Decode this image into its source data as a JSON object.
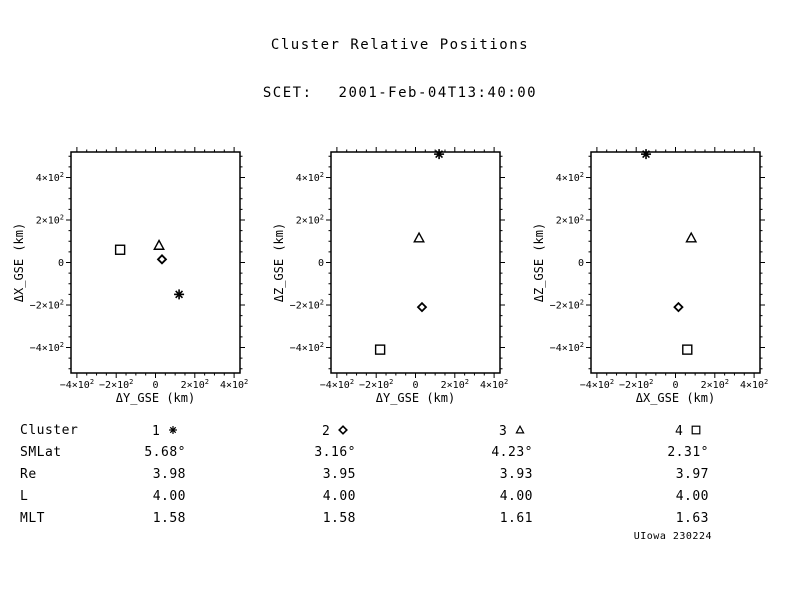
{
  "chart_data": {
    "type": "scatter",
    "title": "Cluster Relative Positions",
    "subtitle_label": "SCET:",
    "subtitle_value": "2001-Feb-04T13:40:00",
    "unit": "km",
    "axes": {
      "xlim_km": [
        -430,
        430
      ],
      "ylim_km": [
        -520,
        520
      ],
      "xticks_km": [
        -400,
        -200,
        0,
        200,
        400
      ],
      "yticks_km": [
        -400,
        -200,
        0,
        200,
        400
      ],
      "minor_step_km": 50,
      "exponent": "2",
      "grid": false,
      "ticks": "outward"
    },
    "panels": [
      {
        "xkey": "dy_km",
        "ykey": "dx_km",
        "xlabel": "ΔY_GSE (km)",
        "ylabel": "ΔX_GSE (km)"
      },
      {
        "xkey": "dy_km",
        "ykey": "dz_km",
        "xlabel": "ΔY_GSE (km)",
        "ylabel": "ΔZ_GSE (km)"
      },
      {
        "xkey": "dx_km",
        "ykey": "dz_km",
        "xlabel": "ΔX_GSE (km)",
        "ylabel": "ΔZ_GSE (km)"
      }
    ],
    "spacecraft": [
      {
        "number": "1",
        "symbol": "asterisk",
        "dx_km": -150,
        "dy_km": 120,
        "dz_km": 510,
        "smlat": "5.68°",
        "re": "3.98",
        "l": "4.00",
        "mlt": "1.58"
      },
      {
        "number": "2",
        "symbol": "diamond",
        "dx_km": 15,
        "dy_km": 33,
        "dz_km": -210,
        "smlat": "3.16°",
        "re": "3.95",
        "l": "4.00",
        "mlt": "1.58"
      },
      {
        "number": "3",
        "symbol": "triangle",
        "dx_km": 80,
        "dy_km": 18,
        "dz_km": 115,
        "smlat": "4.23°",
        "re": "3.93",
        "l": "4.00",
        "mlt": "1.61"
      },
      {
        "number": "4",
        "symbol": "square",
        "dx_km": 60,
        "dy_km": -180,
        "dz_km": -410,
        "smlat": "2.31°",
        "re": "3.97",
        "l": "4.00",
        "mlt": "1.63"
      }
    ]
  },
  "table": {
    "row_labels": [
      "Cluster",
      "SMLat",
      "Re",
      "L",
      "MLT"
    ]
  },
  "footer": {
    "credit": "UIowa 230224"
  }
}
